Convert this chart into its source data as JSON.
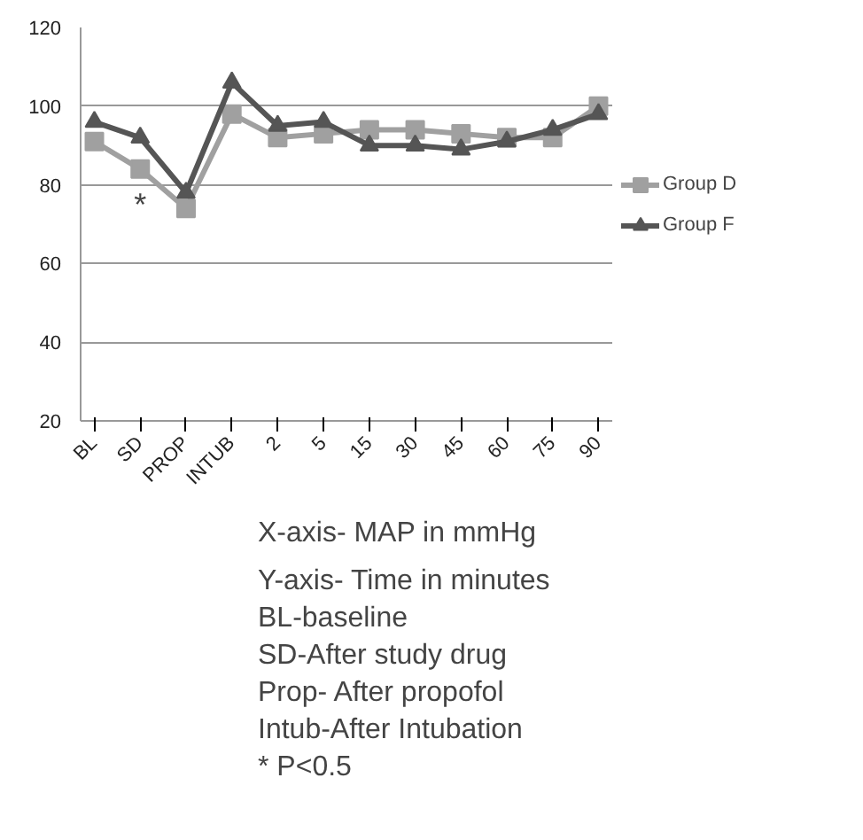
{
  "chart_data": {
    "type": "line",
    "categories": [
      "BL",
      "SD",
      "PROP",
      "INTUB",
      "2",
      "5",
      "15",
      "30",
      "45",
      "60",
      "75",
      "90"
    ],
    "series": [
      {
        "name": "Group D",
        "color": "#a0a0a0",
        "marker": "square",
        "values": [
          91,
          84,
          74,
          98,
          92,
          93,
          94,
          94,
          93,
          92,
          92,
          100
        ]
      },
      {
        "name": "Group F",
        "color": "#555555",
        "marker": "triangle",
        "values": [
          96,
          92,
          78,
          106,
          95,
          96,
          90,
          90,
          89,
          91,
          94,
          98
        ]
      }
    ],
    "ylim": [
      20,
      120
    ],
    "yticks": [
      20,
      40,
      60,
      80,
      100,
      120
    ],
    "grid": "y",
    "legend": "right",
    "annotations": [
      {
        "text": "*",
        "x": "SD",
        "y": 84
      },
      "X-axis- MAP in mmHg",
      "Y-axis- Time in minutes",
      "BL-baseline",
      "SD-After study drug",
      "Prop- After propofol",
      "Intub-After Intubation",
      "* P<0.5"
    ]
  }
}
